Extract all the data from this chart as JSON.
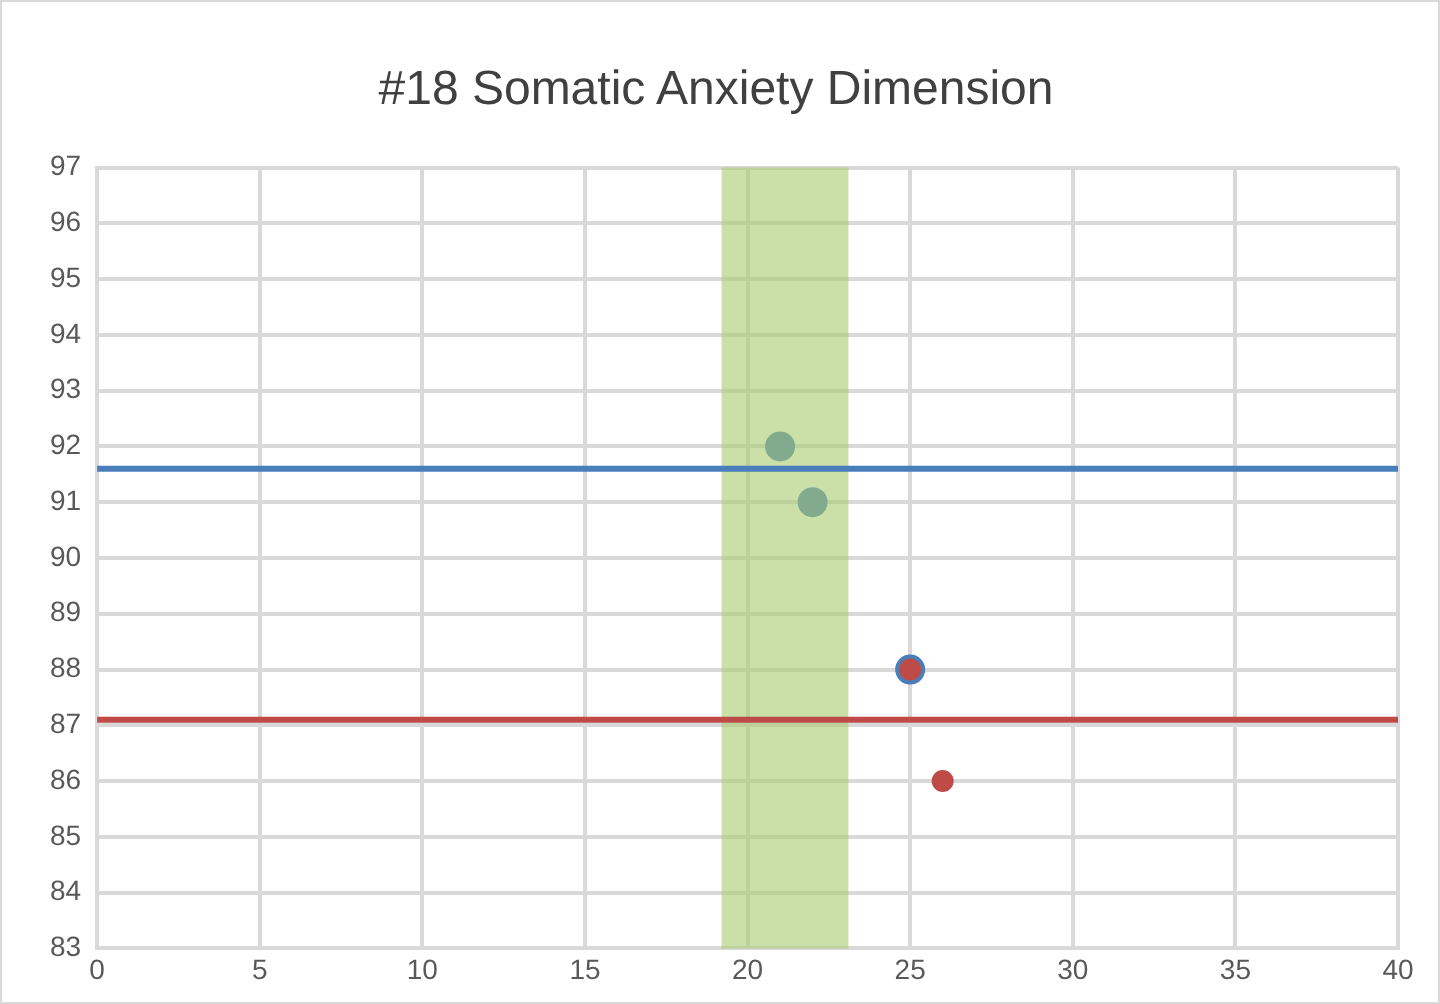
{
  "chart_data": {
    "type": "scatter",
    "title": "#18 Somatic Anxiety Dimension",
    "series": [
      {
        "color": "#4a7ebb",
        "x": [
          21,
          22,
          25
        ],
        "values": [
          92,
          91,
          88
        ]
      },
      {
        "color": "#be4b48",
        "x": [
          25,
          26
        ],
        "values": [
          88,
          86
        ]
      }
    ],
    "xlim": [
      0,
      40
    ],
    "xticks": [
      0,
      5,
      10,
      15,
      20,
      25,
      30,
      35,
      40
    ],
    "ylim": [
      83,
      97
    ],
    "yticks": [
      83,
      84,
      85,
      86,
      87,
      88,
      89,
      90,
      91,
      92,
      93,
      94,
      95,
      96,
      97
    ],
    "grid": true,
    "legend": false,
    "marker": "circle",
    "ref_lines": [
      {
        "axis": "y",
        "value": 91.6,
        "color": "#4a7ebb"
      },
      {
        "axis": "y",
        "value": 87.1,
        "color": "#be4b48"
      }
    ],
    "bands": [
      {
        "axis": "x",
        "from": 19.2,
        "to": 23.1,
        "color": "#a9c96f"
      }
    ]
  }
}
